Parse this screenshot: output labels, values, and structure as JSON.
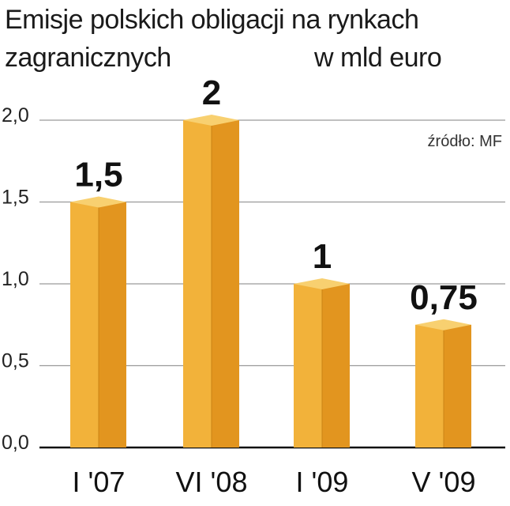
{
  "chart_data": {
    "type": "bar",
    "title_line1": "Emisje polskich obligacji na rynkach",
    "title_line2": "zagranicznych",
    "unit": "w mld euro",
    "source": "źródło: MF",
    "categories": [
      "I '07",
      "VI '08",
      "I '09",
      "V '09"
    ],
    "values": [
      1.5,
      2,
      1,
      0.75
    ],
    "value_labels": [
      "1,5",
      "2",
      "1",
      "0,75"
    ],
    "highlight_index": 1,
    "ylim": [
      0,
      2.0
    ],
    "yticks": [
      0,
      0.5,
      1.0,
      1.5,
      2.0
    ],
    "ytick_labels": [
      "0,0",
      "0,5",
      "1,0",
      "1,5",
      "2,0"
    ],
    "grid": true,
    "colors": {
      "bar_front": "#F2B23A",
      "bar_side": "#E2951F",
      "bar_top": "#F8D070",
      "highlight_label": "#C8102E",
      "label": "#111111",
      "grid": "#9a9a9a"
    }
  }
}
